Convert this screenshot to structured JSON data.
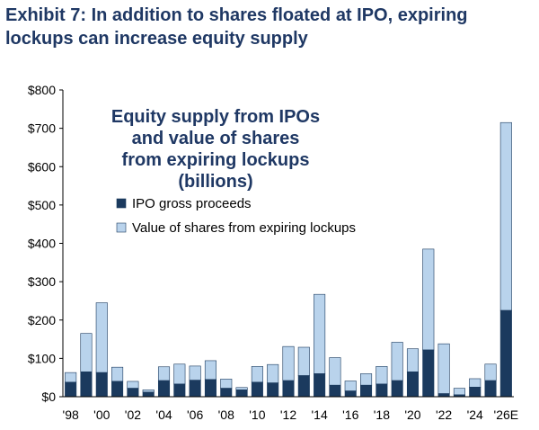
{
  "exhibit": {
    "title": "Exhibit 7: In addition to shares floated at IPO, expiring lockups can increase equity supply"
  },
  "colors": {
    "ipo": "#1b3a5e",
    "lockup": "#b9d3ec",
    "bar_stroke": "#1b3a5e",
    "axis": "#000000",
    "title": "#1f3864"
  },
  "chart_data": {
    "type": "bar",
    "stacked": true,
    "title_lines": [
      "Equity supply from IPOs",
      "and value of shares",
      "from expiring lockups",
      "(billions)"
    ],
    "categories": [
      "1998",
      "1999",
      "2000",
      "2001",
      "2002",
      "2003",
      "2004",
      "2005",
      "2006",
      "2007",
      "2008",
      "2009",
      "2010",
      "2011",
      "2012",
      "2013",
      "2014",
      "2015",
      "2016",
      "2017",
      "2018",
      "2019",
      "2020",
      "2021",
      "2022",
      "2023",
      "2024",
      "2025",
      "2026E"
    ],
    "x_tick_labels": [
      "'98",
      "",
      "'00",
      "",
      "'02",
      "",
      "'04",
      "",
      "'06",
      "",
      "'08",
      "",
      "'10",
      "",
      "'12",
      "",
      "'14",
      "",
      "'16",
      "",
      "'18",
      "",
      "'20",
      "",
      "'22",
      "",
      "'24",
      "",
      "'26E"
    ],
    "series": [
      {
        "name": "IPO gross proceeds",
        "values": [
          38,
          65,
          63,
          40,
          22,
          12,
          42,
          33,
          43,
          45,
          22,
          18,
          38,
          36,
          42,
          55,
          60,
          30,
          15,
          30,
          33,
          42,
          65,
          122,
          8,
          5,
          25,
          42,
          225
        ]
      },
      {
        "name": "Value of shares from expiring lockups",
        "values": [
          25,
          100,
          182,
          37,
          18,
          6,
          36,
          52,
          37,
          49,
          24,
          6,
          41,
          48,
          89,
          74,
          207,
          72,
          26,
          30,
          46,
          100,
          60,
          263,
          130,
          17,
          22,
          43,
          490
        ]
      }
    ],
    "y_tick_labels": [
      "$0",
      "$100",
      "$200",
      "$300",
      "$400",
      "$500",
      "$600",
      "$700",
      "$800"
    ],
    "ylim": [
      0,
      800
    ],
    "grid": false,
    "legend_position": "upper-left inside plot"
  }
}
